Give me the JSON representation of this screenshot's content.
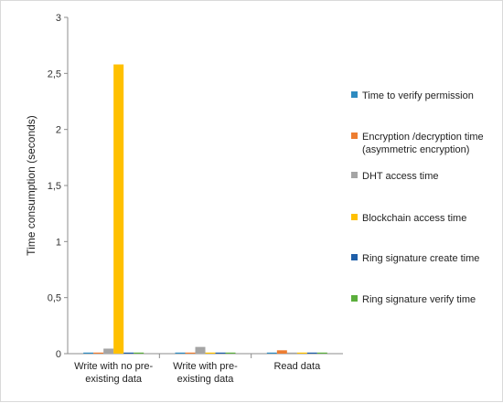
{
  "chart_data": {
    "type": "bar",
    "title": "",
    "xlabel": "",
    "ylabel": "Time consumption (seconds)",
    "ylim": [
      0,
      3
    ],
    "yticks": [
      "0",
      "0,5",
      "1",
      "1,5",
      "2",
      "2,5",
      "3"
    ],
    "grid": false,
    "legend_position": "right",
    "categories": [
      [
        "Write with no pre-",
        "existing data"
      ],
      [
        "Write with pre-",
        "existing data"
      ],
      [
        "Read data"
      ]
    ],
    "series": [
      {
        "name": [
          "Time to verify permission"
        ],
        "color": "#2E8BC0",
        "values": [
          0.008,
          0.008,
          0.008
        ]
      },
      {
        "name": [
          "Encryption /decryption time",
          "(asymmetric encryption)"
        ],
        "color": "#ED7D31",
        "values": [
          0.006,
          0.006,
          0.03
        ]
      },
      {
        "name": [
          "DHT access time"
        ],
        "color": "#A5A5A5",
        "values": [
          0.045,
          0.06,
          0.005
        ]
      },
      {
        "name": [
          "Blockchain access time"
        ],
        "color": "#FFC000",
        "values": [
          2.58,
          0.005,
          0.004
        ]
      },
      {
        "name": [
          "Ring signature create time"
        ],
        "color": "#1F5FA8",
        "values": [
          0.003,
          0.003,
          0.003
        ]
      },
      {
        "name": [
          "Ring signature verify time"
        ],
        "color": "#5BAE3C",
        "values": [
          0.003,
          0.003,
          0.003
        ]
      }
    ]
  }
}
